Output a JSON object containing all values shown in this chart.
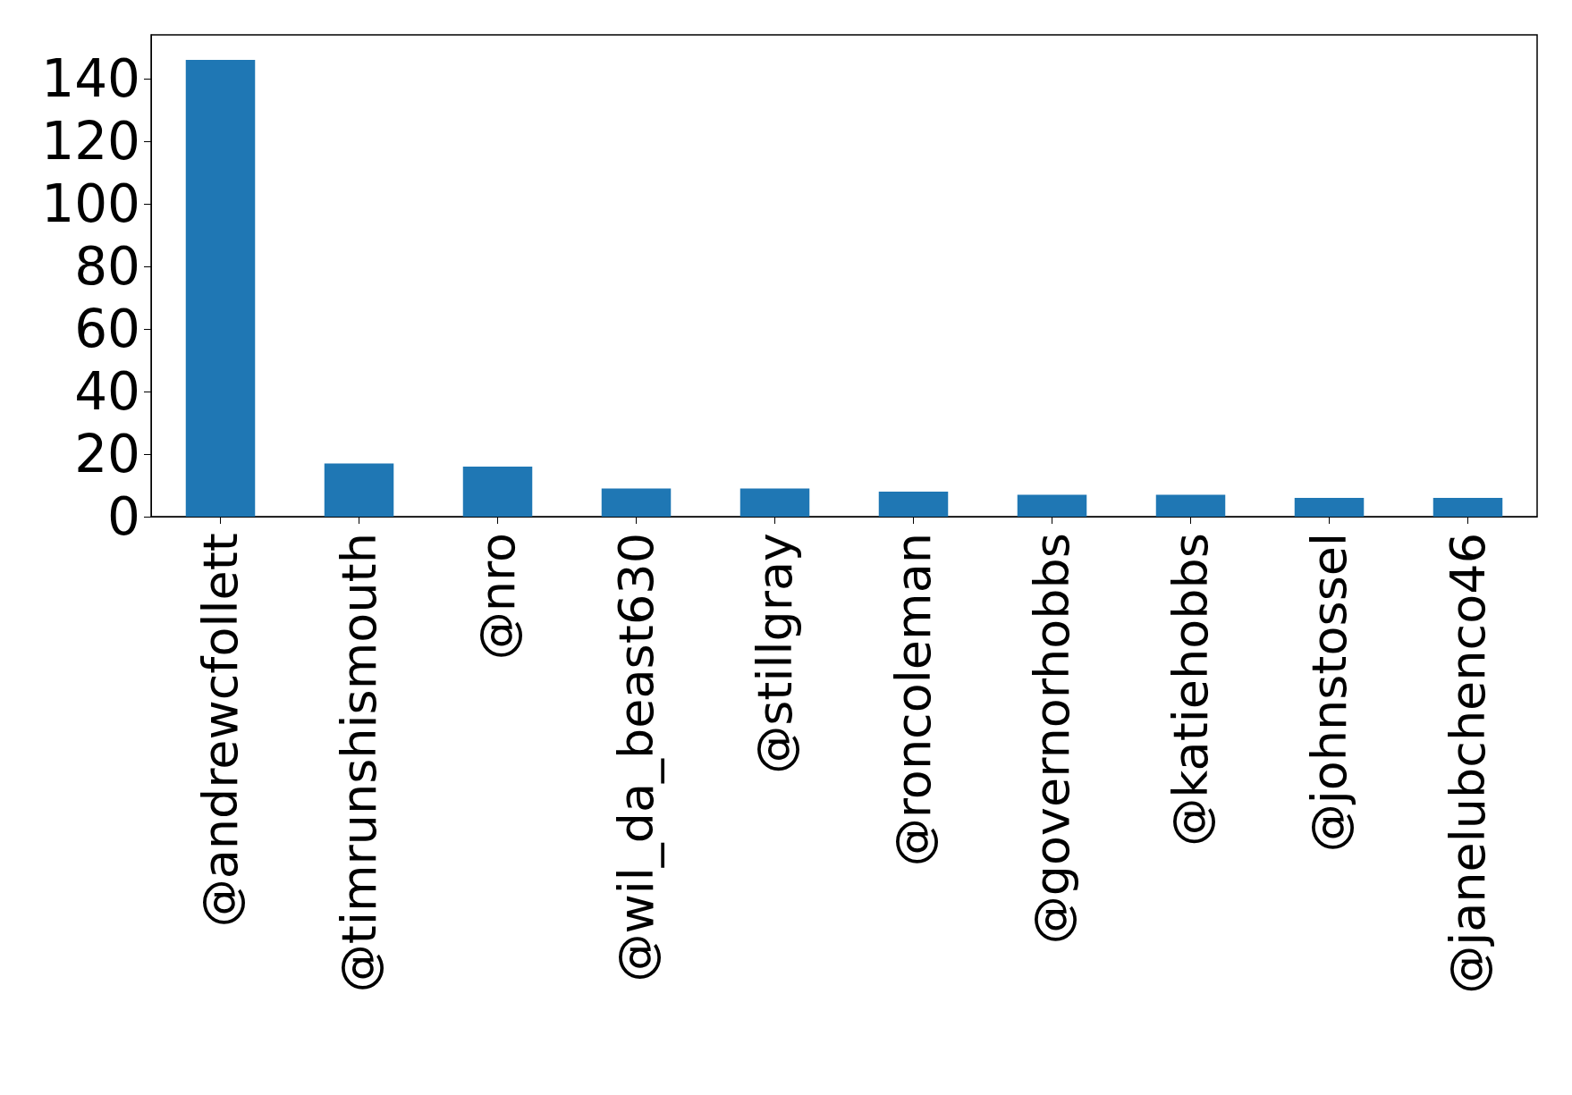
{
  "chart_data": {
    "type": "bar",
    "categories": [
      "@andrewcfollett",
      "@timrunshismouth",
      "@nro",
      "@wil_da_beast630",
      "@stillgray",
      "@roncoleman",
      "@governorhobbs",
      "@katiehobbs",
      "@johnstossel",
      "@janelubchenco46"
    ],
    "values": [
      146,
      17,
      16,
      9,
      9,
      8,
      7,
      7,
      6,
      6
    ],
    "color": "#1f77b4",
    "ylim": [
      0,
      154
    ],
    "yticks": [
      0,
      20,
      40,
      60,
      80,
      100,
      120,
      140
    ],
    "grid": false
  }
}
